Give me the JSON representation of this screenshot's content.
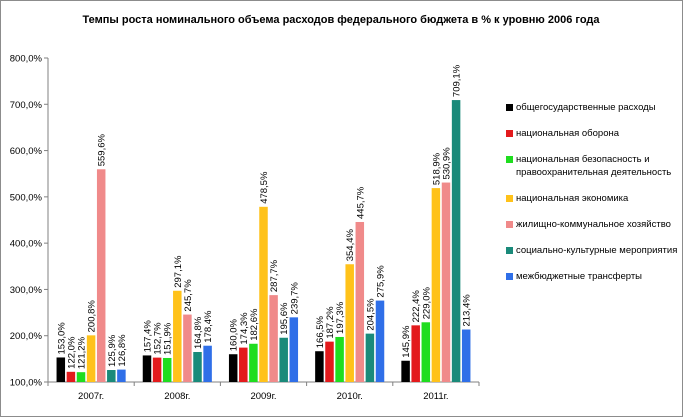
{
  "chart_data": {
    "type": "bar",
    "title": "Темпы роста номинального объема расходов федерального бюджета в % к уровню 2006 года",
    "categories": [
      "2007г.",
      "2008г.",
      "2009г.",
      "2010г.",
      "2011г."
    ],
    "ylim": [
      100,
      800
    ],
    "yticks": [
      "100,0%",
      "200,0%",
      "300,0%",
      "400,0%",
      "500,0%",
      "600,0%",
      "700,0%",
      "800,0%"
    ],
    "legend_position": "right",
    "grid": false,
    "series": [
      {
        "name": "общегосударственные расходы",
        "color": "#000000",
        "values": [
          153.0,
          157.4,
          160.0,
          166.5,
          145.9
        ],
        "labels": [
          "153,0%",
          "157,4%",
          "160,0%",
          "166,5%",
          "145,9%"
        ]
      },
      {
        "name": "национальная оборона",
        "color": "#e31a1c",
        "values": [
          122.0,
          152.7,
          174.3,
          187.2,
          222.4
        ],
        "labels": [
          "122,0%",
          "152,7%",
          "174,3%",
          "187,2%",
          "222,4%"
        ]
      },
      {
        "name": "национальная безопасность и правоохранительная деятельность",
        "color": "#1fdd1f",
        "values": [
          121.2,
          151.9,
          182.6,
          197.3,
          229.0
        ],
        "labels": [
          "121,2%",
          "151,9%",
          "182,6%",
          "197,3%",
          "229,0%"
        ]
      },
      {
        "name": "национальная экономика",
        "color": "#ffc21a",
        "values": [
          200.8,
          297.1,
          478.5,
          354.4,
          518.9
        ],
        "labels": [
          "200,8%",
          "297,1%",
          "478,5%",
          "354,4%",
          "518,9%"
        ]
      },
      {
        "name": "жилищно-коммунальное хозяйство",
        "color": "#f08a8a",
        "values": [
          559.6,
          245.7,
          287.7,
          445.7,
          530.9
        ],
        "labels": [
          "559,6%",
          "245,7%",
          "287,7%",
          "445,7%",
          "530,9%"
        ]
      },
      {
        "name": "социально-культурные мероприятия",
        "color": "#1a8a7a",
        "values": [
          125.9,
          164.8,
          195.6,
          204.5,
          709.1
        ],
        "labels": [
          "125,9%",
          "164,8%",
          "195,6%",
          "204,5%",
          "709,1%"
        ]
      },
      {
        "name": "межбюджетные трансферты",
        "color": "#2f6fe8",
        "values": [
          126.8,
          178.4,
          239.7,
          275.9,
          213.4
        ],
        "labels": [
          "126,8%",
          "178,4%",
          "239,7%",
          "275,9%",
          "213,4%"
        ]
      }
    ]
  }
}
